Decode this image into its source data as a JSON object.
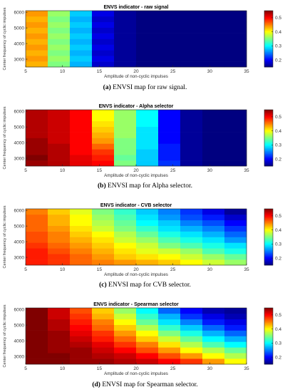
{
  "colormap": "jet",
  "figure": {
    "panels": [
      {
        "caption_label": "(a)",
        "caption_text": " ENVSI map for raw signal."
      },
      {
        "caption_label": "(b)",
        "caption_text": " ENVSI map for Alpha selector."
      },
      {
        "caption_label": "(c)",
        "caption_text": " ENVSI map for CVB selector."
      },
      {
        "caption_label": "(d)",
        "caption_text": " ENVSI map for Spearman selector."
      }
    ]
  },
  "chart_data": [
    {
      "type": "heatmap",
      "title": "ENVS indicator - raw signal",
      "xlabel": "Amplitude of non-cyclic impulses",
      "ylabel": "Center frequency of cyclic impulses",
      "x": [
        5,
        8,
        11,
        14,
        17,
        20,
        23,
        26,
        29,
        32,
        35
      ],
      "y": [
        2500,
        2860,
        3220,
        3580,
        3940,
        4300,
        4660,
        5020,
        5380,
        5740,
        6100
      ],
      "xticks": [
        5,
        10,
        15,
        20,
        25,
        30,
        35
      ],
      "yticks": [
        3000,
        4000,
        5000,
        6000
      ],
      "colorbar": {
        "min": 0.15,
        "max": 0.55,
        "ticks": [
          0.2,
          0.3,
          0.4,
          0.5
        ]
      },
      "values": [
        [
          0.43,
          0.35,
          0.27,
          0.18,
          0.16,
          0.15,
          0.15,
          0.15,
          0.15,
          0.15
        ],
        [
          0.44,
          0.36,
          0.28,
          0.19,
          0.16,
          0.15,
          0.15,
          0.15,
          0.15,
          0.15
        ],
        [
          0.43,
          0.35,
          0.27,
          0.18,
          0.16,
          0.15,
          0.15,
          0.15,
          0.15,
          0.15
        ],
        [
          0.44,
          0.36,
          0.28,
          0.19,
          0.16,
          0.15,
          0.15,
          0.15,
          0.15,
          0.15
        ],
        [
          0.43,
          0.35,
          0.27,
          0.18,
          0.16,
          0.15,
          0.15,
          0.15,
          0.15,
          0.15
        ],
        [
          0.44,
          0.36,
          0.28,
          0.19,
          0.16,
          0.15,
          0.15,
          0.15,
          0.15,
          0.15
        ],
        [
          0.43,
          0.35,
          0.27,
          0.18,
          0.16,
          0.15,
          0.15,
          0.15,
          0.15,
          0.15
        ],
        [
          0.44,
          0.36,
          0.28,
          0.19,
          0.16,
          0.15,
          0.15,
          0.15,
          0.15,
          0.15
        ],
        [
          0.43,
          0.35,
          0.27,
          0.18,
          0.16,
          0.15,
          0.15,
          0.15,
          0.15,
          0.15
        ],
        [
          0.44,
          0.36,
          0.28,
          0.19,
          0.16,
          0.15,
          0.15,
          0.15,
          0.15,
          0.15
        ]
      ]
    },
    {
      "type": "heatmap",
      "title": "ENVS indicator - Alpha selector",
      "xlabel": "Amplitude of non-cyclic impulses",
      "ylabel": "Center frequency of cyclic impulses",
      "x": [
        5,
        8,
        11,
        14,
        17,
        20,
        23,
        26,
        29,
        32,
        35
      ],
      "y": [
        2500,
        2860,
        3220,
        3580,
        3940,
        4300,
        4660,
        5020,
        5380,
        5740,
        6100
      ],
      "xticks": [
        5,
        10,
        15,
        20,
        25,
        30,
        35
      ],
      "yticks": [
        3000,
        4000,
        5000,
        6000
      ],
      "colorbar": {
        "min": 0.15,
        "max": 0.55,
        "ticks": [
          0.2,
          0.3,
          0.4,
          0.5
        ]
      },
      "values": [
        [
          0.54,
          0.53,
          0.51,
          0.5,
          0.35,
          0.28,
          0.22,
          0.16,
          0.15,
          0.15
        ],
        [
          0.55,
          0.53,
          0.51,
          0.49,
          0.34,
          0.28,
          0.21,
          0.16,
          0.15,
          0.15
        ],
        [
          0.54,
          0.53,
          0.5,
          0.48,
          0.35,
          0.28,
          0.21,
          0.16,
          0.15,
          0.15
        ],
        [
          0.54,
          0.53,
          0.5,
          0.46,
          0.35,
          0.29,
          0.21,
          0.16,
          0.15,
          0.15
        ],
        [
          0.54,
          0.52,
          0.5,
          0.44,
          0.35,
          0.29,
          0.2,
          0.16,
          0.15,
          0.15
        ],
        [
          0.53,
          0.52,
          0.5,
          0.43,
          0.36,
          0.29,
          0.2,
          0.16,
          0.15,
          0.15
        ],
        [
          0.53,
          0.52,
          0.5,
          0.42,
          0.36,
          0.29,
          0.2,
          0.16,
          0.15,
          0.15
        ],
        [
          0.53,
          0.52,
          0.5,
          0.41,
          0.36,
          0.3,
          0.2,
          0.16,
          0.15,
          0.15
        ],
        [
          0.53,
          0.52,
          0.5,
          0.4,
          0.36,
          0.3,
          0.2,
          0.16,
          0.15,
          0.15
        ],
        [
          0.53,
          0.52,
          0.5,
          0.4,
          0.36,
          0.3,
          0.2,
          0.16,
          0.15,
          0.15
        ]
      ]
    },
    {
      "type": "heatmap",
      "title": "ENVS indicator - CVB selector",
      "xlabel": "Amplitude of non-cyclic impulses",
      "ylabel": "Center frequency of cyclic impulses",
      "x": [
        5,
        8,
        11,
        14,
        17,
        20,
        23,
        26,
        29,
        32,
        35
      ],
      "y": [
        2500,
        2860,
        3220,
        3580,
        3940,
        4300,
        4660,
        5020,
        5380,
        5740,
        6100
      ],
      "xticks": [
        5,
        10,
        15,
        20,
        25,
        30,
        35
      ],
      "yticks": [
        3000,
        4000,
        5000,
        6000
      ],
      "colorbar": {
        "min": 0.15,
        "max": 0.55,
        "ticks": [
          0.2,
          0.3,
          0.4,
          0.5
        ]
      },
      "values": [
        [
          0.49,
          0.48,
          0.46,
          0.45,
          0.44,
          0.43,
          0.42,
          0.4,
          0.38,
          0.36
        ],
        [
          0.49,
          0.48,
          0.46,
          0.44,
          0.42,
          0.41,
          0.4,
          0.38,
          0.36,
          0.34
        ],
        [
          0.49,
          0.47,
          0.45,
          0.43,
          0.41,
          0.39,
          0.38,
          0.36,
          0.33,
          0.31
        ],
        [
          0.48,
          0.46,
          0.44,
          0.42,
          0.4,
          0.38,
          0.35,
          0.33,
          0.31,
          0.29
        ],
        [
          0.47,
          0.45,
          0.43,
          0.41,
          0.38,
          0.36,
          0.33,
          0.31,
          0.29,
          0.26
        ],
        [
          0.47,
          0.45,
          0.42,
          0.4,
          0.37,
          0.34,
          0.31,
          0.29,
          0.27,
          0.24
        ],
        [
          0.46,
          0.44,
          0.41,
          0.38,
          0.35,
          0.32,
          0.29,
          0.27,
          0.25,
          0.22
        ],
        [
          0.46,
          0.43,
          0.4,
          0.37,
          0.34,
          0.3,
          0.28,
          0.25,
          0.23,
          0.2
        ],
        [
          0.46,
          0.43,
          0.4,
          0.36,
          0.33,
          0.29,
          0.26,
          0.23,
          0.21,
          0.18
        ],
        [
          0.45,
          0.42,
          0.39,
          0.35,
          0.32,
          0.28,
          0.25,
          0.22,
          0.19,
          0.16
        ]
      ]
    },
    {
      "type": "heatmap",
      "title": "ENVS indicator - Spearman selector",
      "xlabel": "Amplitude of non-cyclic impulses",
      "ylabel": "Center frequency of cyclic impulses",
      "x": [
        5,
        8,
        11,
        14,
        17,
        20,
        23,
        26,
        29,
        32,
        35
      ],
      "y": [
        2500,
        2860,
        3220,
        3580,
        3940,
        4300,
        4660,
        5020,
        5380,
        5740,
        6100
      ],
      "xticks": [
        5,
        10,
        15,
        20,
        25,
        30,
        35
      ],
      "yticks": [
        3000,
        4000,
        5000,
        6000
      ],
      "colorbar": {
        "min": 0.15,
        "max": 0.55,
        "ticks": [
          0.2,
          0.3,
          0.4,
          0.5
        ]
      },
      "values": [
        [
          0.55,
          0.55,
          0.54,
          0.54,
          0.53,
          0.52,
          0.5,
          0.48,
          0.44,
          0.4
        ],
        [
          0.55,
          0.55,
          0.54,
          0.53,
          0.52,
          0.5,
          0.47,
          0.44,
          0.4,
          0.37
        ],
        [
          0.55,
          0.54,
          0.54,
          0.52,
          0.5,
          0.47,
          0.44,
          0.4,
          0.37,
          0.34
        ],
        [
          0.55,
          0.54,
          0.53,
          0.51,
          0.48,
          0.45,
          0.41,
          0.37,
          0.33,
          0.3
        ],
        [
          0.55,
          0.54,
          0.52,
          0.49,
          0.46,
          0.42,
          0.38,
          0.34,
          0.3,
          0.27
        ],
        [
          0.55,
          0.54,
          0.51,
          0.48,
          0.44,
          0.4,
          0.35,
          0.31,
          0.27,
          0.24
        ],
        [
          0.55,
          0.53,
          0.5,
          0.46,
          0.42,
          0.37,
          0.32,
          0.28,
          0.24,
          0.21
        ],
        [
          0.55,
          0.53,
          0.49,
          0.45,
          0.4,
          0.34,
          0.29,
          0.25,
          0.21,
          0.19
        ],
        [
          0.55,
          0.52,
          0.48,
          0.43,
          0.38,
          0.32,
          0.27,
          0.22,
          0.19,
          0.17
        ],
        [
          0.55,
          0.52,
          0.47,
          0.42,
          0.36,
          0.3,
          0.24,
          0.2,
          0.17,
          0.16
        ]
      ]
    }
  ]
}
